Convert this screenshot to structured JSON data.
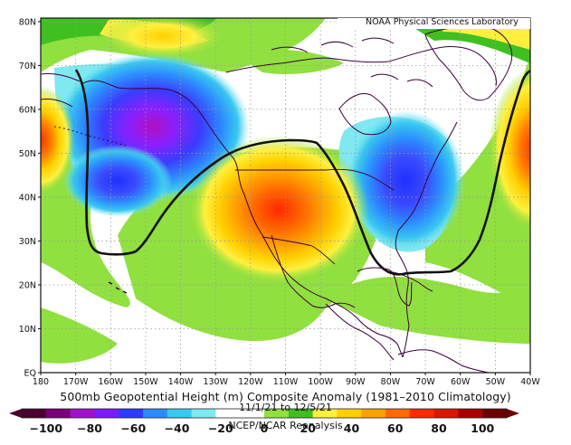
{
  "header": {
    "credit": "NOAA Physical Sciences Laboratory"
  },
  "map": {
    "lat_labels": [
      "80N",
      "70N",
      "60N",
      "50N",
      "40N",
      "30N",
      "20N",
      "10N",
      "EQ"
    ],
    "lon_labels": [
      "180",
      "170W",
      "160W",
      "150W",
      "140W",
      "130W",
      "120W",
      "110W",
      "100W",
      "90W",
      "80W",
      "70W",
      "60W",
      "50W",
      "40W"
    ]
  },
  "caption": {
    "title": "500mb Geopotential Height (m) Composite Anomaly (1981–2010 Climatology)",
    "dates": "11/1/21 to 12/5/21",
    "source": "NCEP/NCAR Reanalysis"
  },
  "colorbar": {
    "ticks": [
      "−100",
      "−80",
      "−60",
      "−40",
      "−20",
      "0",
      "20",
      "40",
      "60",
      "80",
      "100"
    ],
    "colors": [
      "#4a0030",
      "#7a007a",
      "#a010c8",
      "#7a1cff",
      "#2e3cff",
      "#2c8cff",
      "#38c8f0",
      "#80e8f0",
      "#ffffff",
      "#ffffff",
      "#90e040",
      "#40c020",
      "#fff040",
      "#ffd000",
      "#ffa000",
      "#ff6a00",
      "#ff2800",
      "#d81800",
      "#a80000",
      "#6a0000"
    ]
  }
}
